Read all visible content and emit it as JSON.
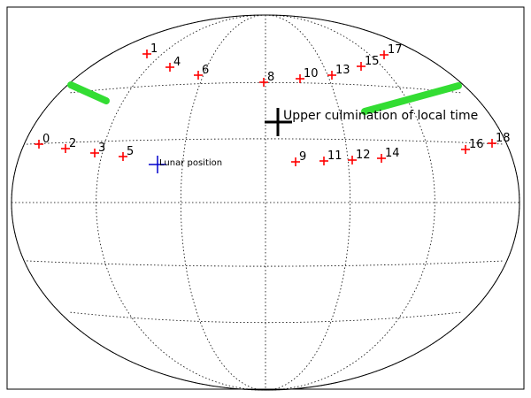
{
  "chart_data": {
    "type": "scatter",
    "projection": "Aitoff/Hammer all-sky (ellipse)",
    "grid": "dotted",
    "title": "",
    "points": [
      {
        "label": "0",
        "color": "#ff0000"
      },
      {
        "label": "1",
        "color": "#ff0000"
      },
      {
        "label": "2",
        "color": "#ff0000"
      },
      {
        "label": "3",
        "color": "#ff0000"
      },
      {
        "label": "4",
        "color": "#ff0000"
      },
      {
        "label": "5",
        "color": "#ff0000"
      },
      {
        "label": "6",
        "color": "#ff0000"
      },
      {
        "label": "8",
        "color": "#ff0000"
      },
      {
        "label": "9",
        "color": "#ff0000"
      },
      {
        "label": "10",
        "color": "#ff0000"
      },
      {
        "label": "11",
        "color": "#ff0000"
      },
      {
        "label": "12",
        "color": "#ff0000"
      },
      {
        "label": "13",
        "color": "#ff0000"
      },
      {
        "label": "14",
        "color": "#ff0000"
      },
      {
        "label": "15",
        "color": "#ff0000"
      },
      {
        "label": "16",
        "color": "#ff0000"
      },
      {
        "label": "17",
        "color": "#ff0000"
      },
      {
        "label": "18",
        "color": "#ff0000"
      }
    ],
    "annotations": [
      {
        "text": "Upper culmination of local time",
        "color": "#000000",
        "marker": "large-cross"
      },
      {
        "text": "Lunar position",
        "color": "#0000cc",
        "marker": "cross"
      }
    ],
    "tracks": [
      {
        "name": "",
        "color": "#33dd33"
      }
    ]
  }
}
